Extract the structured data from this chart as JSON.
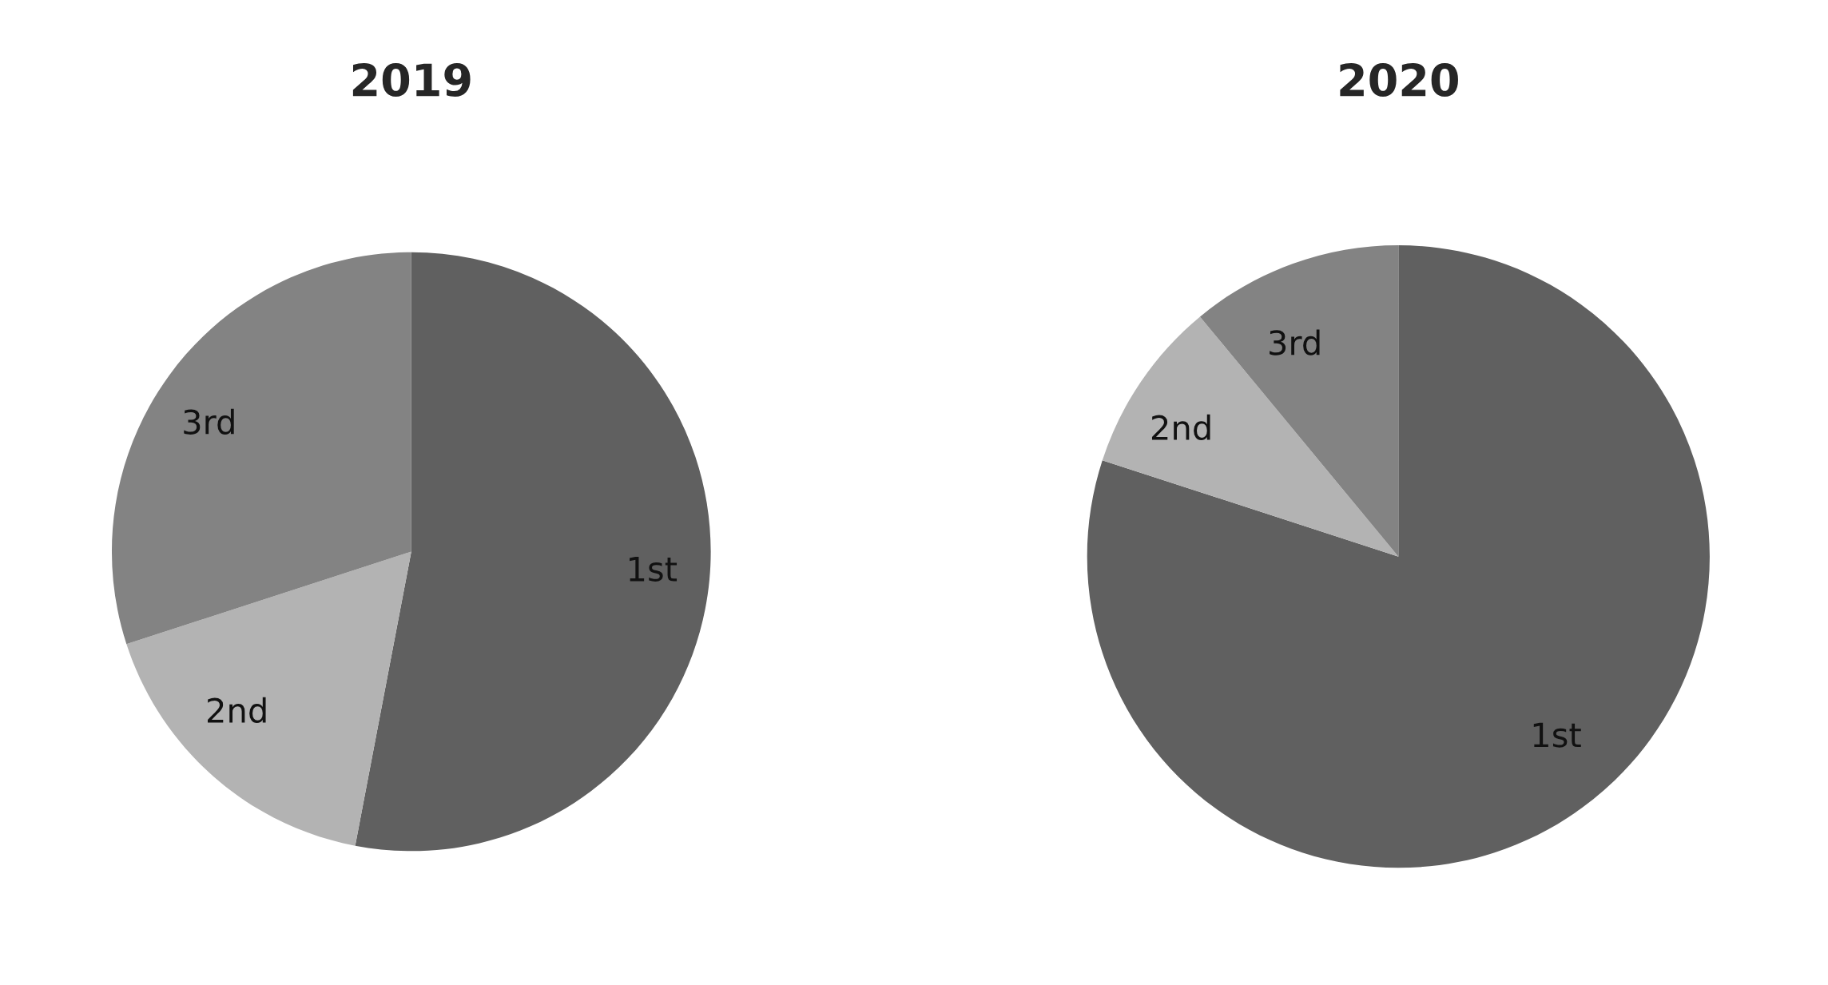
{
  "chart_data": [
    {
      "type": "pie",
      "title": "2019",
      "categories": [
        "1st",
        "2nd",
        "3rd"
      ],
      "values": [
        53,
        17,
        30
      ],
      "colors": [
        "#606060",
        "#b3b3b3",
        "#838383"
      ]
    },
    {
      "type": "pie",
      "title": "2020",
      "categories": [
        "1st",
        "2nd",
        "3rd"
      ],
      "values": [
        80,
        9,
        11
      ],
      "colors": [
        "#606060",
        "#b3b3b3",
        "#838383"
      ]
    }
  ]
}
